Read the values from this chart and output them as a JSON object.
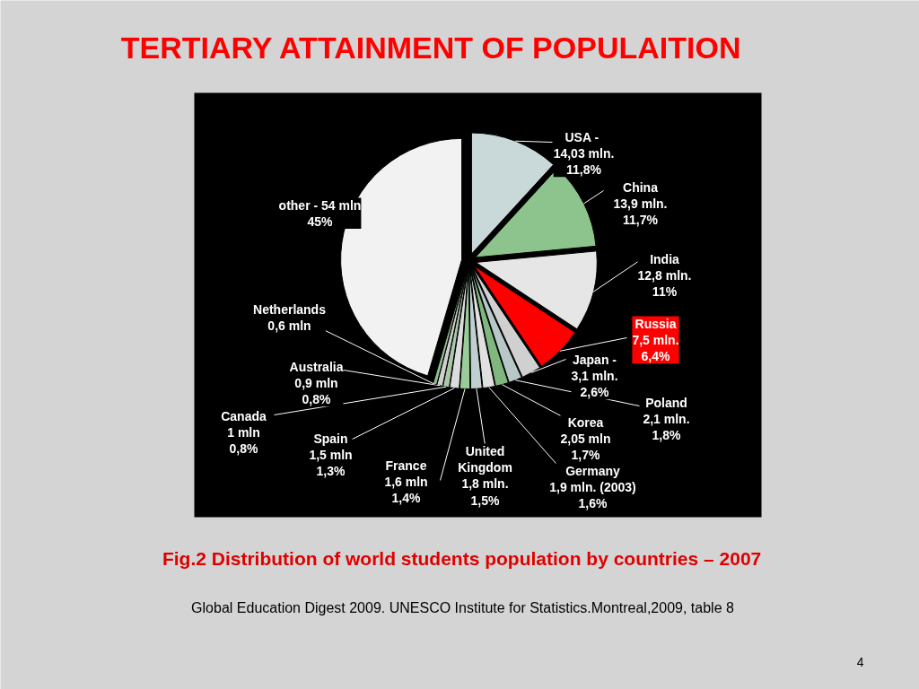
{
  "chart_data": {
    "type": "pie",
    "title": "TERTIARY  ATTAINMENT  OF POPULAITION",
    "subtitle": "Fig.2  Distribution of world students population by countries – 2007",
    "categories": [
      "USA  -",
      "China",
      "India",
      "Russia",
      "Japan -",
      "Poland",
      "Korea",
      "Germany",
      "United Kingdom",
      "France",
      "Spain",
      "Canada",
      "Australia",
      "Netherlands",
      "other -"
    ],
    "values": [
      14.03,
      13.9,
      12.8,
      7.5,
      3.1,
      2.1,
      2.05,
      1.9,
      1.8,
      1.6,
      1.5,
      1.0,
      0.9,
      0.6,
      54
    ],
    "value_labels": [
      "14,03 mln.\n11,8%",
      "13,9 mln.\n11,7%",
      "12,8 mln.\n11%",
      "7,5 mln.\n6,4%",
      "3,1 mln.\n2,6%",
      "2,1 mln.\n1,8%",
      "2,05 mln\n1,7%",
      "1,9 mln. (2003)\n1,6%",
      "1,8 mln.\n1,5%",
      "1,6 mln\n1,4%",
      "1,5 mln\n1,3%",
      "1 mln\n0,8%",
      "0,9 mln\n0,8%",
      "0,6 mln",
      "54 mln\n45%"
    ],
    "colors": [
      "#c9d9d9",
      "#8dc48d",
      "#e6e6e6",
      "#ff0000",
      "#d0d0d0",
      "#b8c8c8",
      "#7fb77f",
      "#e0e0e0",
      "#c0d0d0",
      "#9acc9a",
      "#dcdcdc",
      "#a8c8a8",
      "#cfcfcf",
      "#8fbf8f",
      "#f2f2f2"
    ],
    "annotations": [
      "Global Education Digest 2009. UNESCO Institute for Statistics.Montreal,2009, table 8",
      "4"
    ]
  }
}
